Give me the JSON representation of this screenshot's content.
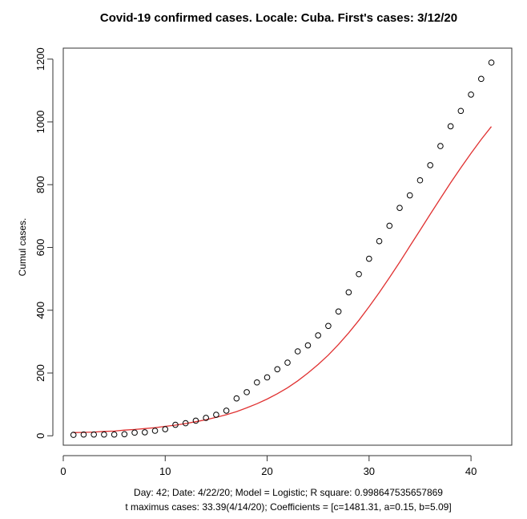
{
  "chart_data": {
    "type": "scatter",
    "title": "Covid-19 confirmed cases. Locale: Cuba. First's cases: 3/12/20",
    "xlabel": "",
    "ylabel": "Cumul cases.",
    "xlim": [
      0,
      44
    ],
    "ylim": [
      -30,
      1235
    ],
    "x_ticks": [
      0,
      10,
      20,
      30,
      40
    ],
    "y_ticks": [
      0,
      200,
      400,
      600,
      800,
      1000,
      1200
    ],
    "grid": false,
    "series": [
      {
        "marker": "open-circle",
        "color": "#000000",
        "x": [
          1,
          2,
          3,
          4,
          5,
          6,
          7,
          8,
          9,
          10,
          11,
          12,
          13,
          14,
          15,
          16,
          17,
          18,
          19,
          20,
          21,
          22,
          23,
          24,
          25,
          26,
          27,
          28,
          29,
          30,
          31,
          32,
          33,
          34,
          35,
          36,
          37,
          38,
          39,
          40,
          41,
          42
        ],
        "y": [
          3,
          4,
          4,
          4,
          4,
          5,
          10,
          11,
          16,
          21,
          35,
          40,
          48,
          57,
          67,
          80,
          119,
          139,
          170,
          186,
          212,
          233,
          269,
          288,
          320,
          350,
          396,
          457,
          515,
          564,
          620,
          669,
          726,
          766,
          814,
          862,
          923,
          986,
          1035,
          1087,
          1137,
          1189
        ]
      },
      {
        "type": "line",
        "color": "#e03131",
        "x": [
          1,
          2,
          3,
          4,
          5,
          6,
          7,
          8,
          9,
          10,
          11,
          12,
          13,
          14,
          15,
          16,
          17,
          18,
          19,
          20,
          21,
          22,
          23,
          24,
          25,
          26,
          27,
          28,
          29,
          30,
          31,
          32,
          33,
          34,
          35,
          36,
          37,
          38,
          39,
          40,
          41,
          42
        ],
        "y": [
          10,
          11,
          12,
          14,
          15,
          18,
          20,
          23,
          26,
          30,
          34,
          39,
          45,
          51,
          59,
          67,
          77,
          89,
          102,
          117,
          134,
          153,
          175,
          200,
          227,
          257,
          291,
          328,
          368,
          411,
          456,
          504,
          553,
          604,
          655,
          706,
          756,
          806,
          854,
          900,
          944,
          985
        ]
      }
    ],
    "footnote_line1": "Day: 42; Date: 4/22/20; Model = Logistic; R square: 0.998647535657869",
    "footnote_line2": "t maximus cases: 33.39(4/14/20); Coefficients = [c=1481.31, a=0.15, b=5.09]"
  }
}
